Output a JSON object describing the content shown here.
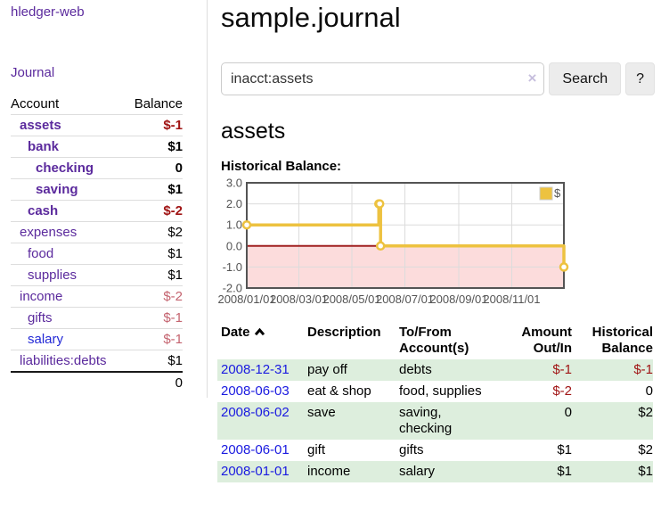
{
  "app": {
    "name": "hledger-web"
  },
  "sidebar": {
    "journal_link": "Journal",
    "accounts": {
      "header_account": "Account",
      "header_balance": "Balance",
      "rows": [
        {
          "name": "assets",
          "depth": 1,
          "bold": true,
          "balance": "$-1",
          "balance_style": "neg-strong"
        },
        {
          "name": "bank",
          "depth": 2,
          "bold": true,
          "balance": "$1",
          "balance_style": "pos-strong"
        },
        {
          "name": "checking",
          "depth": 3,
          "bold": true,
          "balance": "0",
          "balance_style": "pos-strong"
        },
        {
          "name": "saving",
          "depth": 3,
          "bold": true,
          "balance": "$1",
          "balance_style": "pos-strong"
        },
        {
          "name": "cash",
          "depth": 2,
          "bold": true,
          "balance": "$-2",
          "balance_style": "neg-strong"
        },
        {
          "name": "expenses",
          "depth": 1,
          "bold": false,
          "balance": "$2",
          "balance_style": ""
        },
        {
          "name": "food",
          "depth": 2,
          "bold": false,
          "balance": "$1",
          "balance_style": ""
        },
        {
          "name": "supplies",
          "depth": 2,
          "bold": false,
          "balance": "$1",
          "balance_style": ""
        },
        {
          "name": "income",
          "depth": 1,
          "bold": false,
          "balance": "$-2",
          "balance_style": "neg-soft"
        },
        {
          "name": "gifts",
          "depth": 2,
          "bold": false,
          "balance": "$-1",
          "balance_style": "neg-soft"
        },
        {
          "name": "salary",
          "depth": 2,
          "bold": false,
          "balance": "$-1",
          "balance_style": "neg-soft",
          "link_color": "blue"
        },
        {
          "name": "liabilities:debts",
          "depth": 1,
          "bold": false,
          "balance": "$1",
          "balance_style": ""
        }
      ],
      "total": "0"
    }
  },
  "main": {
    "title": "sample.journal",
    "search": {
      "value": "inacct:assets",
      "clear_icon": "×",
      "search_button": "Search",
      "help_button": "?"
    },
    "account_heading": "assets",
    "chart_title": "Historical Balance:"
  },
  "chart_data": {
    "type": "line",
    "step": true,
    "title": "Historical Balance",
    "xlim": [
      "2008-01-01",
      "2008-12-31"
    ],
    "ylim": [
      -2,
      3
    ],
    "x_ticks": [
      "2008/01/01",
      "2008/03/01",
      "2008/05/01",
      "2008/07/01",
      "2008/09/01",
      "2008/11/01"
    ],
    "y_ticks": [
      "3.0",
      "2.0",
      "1.0",
      "0.0",
      "-1.0",
      "-2.0"
    ],
    "grid": true,
    "legend_position": "top-right",
    "series": [
      {
        "name": "$",
        "color": "#edc240",
        "points": [
          [
            "2008-01-01",
            1
          ],
          [
            "2008-06-01",
            2
          ],
          [
            "2008-06-02",
            2
          ],
          [
            "2008-06-03",
            0
          ],
          [
            "2008-12-31",
            -1
          ]
        ]
      }
    ],
    "negative_region_color": "#fcdcdc",
    "zero_line_color": "#a02020",
    "border_color": "#545454",
    "grid_color": "#dcdcdc",
    "axis_text_color": "#545454"
  },
  "register": {
    "headers": [
      "Date",
      "Description",
      "To/From Account(s)",
      "Amount Out/In",
      "Historical Balance"
    ],
    "sort_icon": "chevron-up",
    "rows": [
      {
        "date": "2008-12-31",
        "description": "pay off",
        "accounts": "debts",
        "amount": "$-1",
        "balance": "$-1",
        "amount_negative": true,
        "balance_negative": true
      },
      {
        "date": "2008-06-03",
        "description": "eat & shop",
        "accounts": "food, supplies",
        "amount": "$-2",
        "balance": "0",
        "amount_negative": true,
        "balance_negative": false
      },
      {
        "date": "2008-06-02",
        "description": "save",
        "accounts": "saving, checking",
        "amount": "0",
        "balance": "$2",
        "amount_negative": false,
        "balance_negative": false
      },
      {
        "date": "2008-06-01",
        "description": "gift",
        "accounts": "gifts",
        "amount": "$1",
        "balance": "$2",
        "amount_negative": false,
        "balance_negative": false
      },
      {
        "date": "2008-01-01",
        "description": "income",
        "accounts": "salary",
        "amount": "$1",
        "balance": "$1",
        "amount_negative": false,
        "balance_negative": false
      }
    ]
  },
  "colors": {
    "link_purple": "#5b2a9d",
    "link_blue": "#1a1ae0",
    "negative_strong": "#a01414",
    "negative_soft": "#c4636f",
    "row_stripe_green": "#ddeedd",
    "series_gold": "#edc240",
    "chart_negative_fill": "#fcdcdc",
    "chart_zero_line": "#a02020"
  }
}
